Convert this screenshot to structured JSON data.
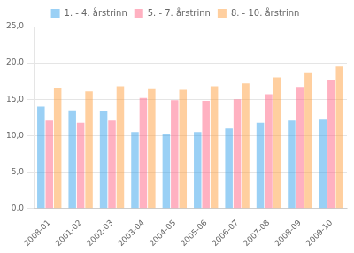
{
  "chart_data": {
    "type": "bar",
    "categories": [
      "2008-01",
      "2001-02",
      "2002-03",
      "2003-04",
      "2004-05",
      "2005-06",
      "2006-07",
      "2007-08",
      "2008-09",
      "2009-10"
    ],
    "series": [
      {
        "name": "1. - 4. årstrinn",
        "values": [
          14.0,
          13.5,
          13.4,
          10.5,
          10.3,
          10.5,
          11.0,
          11.8,
          12.1,
          12.2
        ]
      },
      {
        "name": "5. - 7. årstrinn",
        "values": [
          12.1,
          11.8,
          12.1,
          15.2,
          14.9,
          14.8,
          15.0,
          15.7,
          16.7,
          17.6
        ]
      },
      {
        "name": "8. - 10. årstrinn",
        "values": [
          16.5,
          16.1,
          16.8,
          16.4,
          16.3,
          16.8,
          17.2,
          18.0,
          18.7,
          19.5
        ]
      }
    ],
    "ylim": [
      0,
      25
    ],
    "yticks": [
      {
        "value": 0,
        "label": "0,0"
      },
      {
        "value": 5,
        "label": "5,0"
      },
      {
        "value": 10,
        "label": "10,0"
      },
      {
        "value": 15,
        "label": "15,0"
      },
      {
        "value": 20,
        "label": "20,0"
      },
      {
        "value": 25,
        "label": "25,0"
      }
    ],
    "grid": true,
    "legend": "top"
  }
}
